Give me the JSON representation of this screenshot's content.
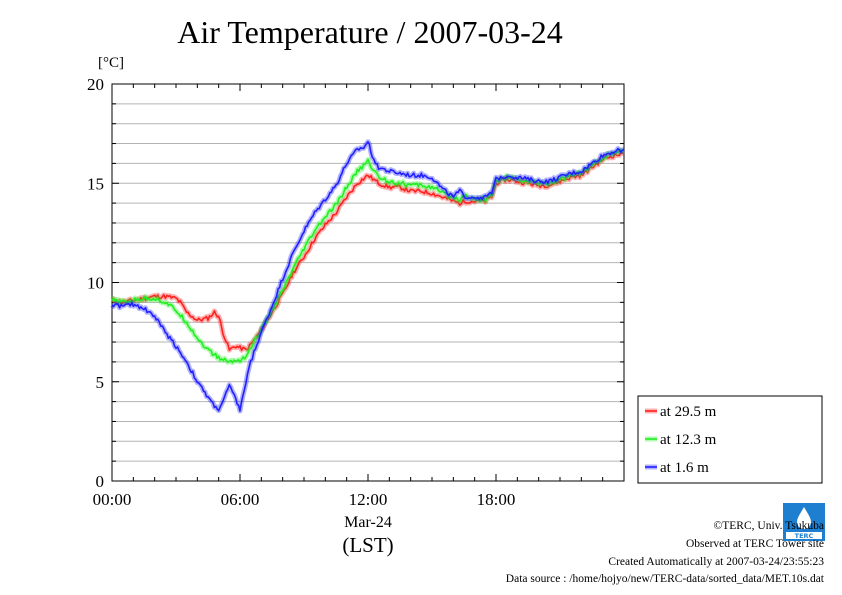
{
  "chart_data": {
    "type": "line",
    "title": "Air Temperature / 2007-03-24",
    "ylabel": "[°C]",
    "xlabel_date": "Mar-24",
    "xlabel_tz": "(LST)",
    "ylim": [
      0,
      20
    ],
    "xlim": [
      0,
      24
    ],
    "x_unit": "hours (LST)",
    "yticks": [
      "0",
      "5",
      "10",
      "15",
      "20"
    ],
    "xticks": [
      {
        "value": 0,
        "label": "00:00"
      },
      {
        "value": 6,
        "label": "06:00"
      },
      {
        "value": 12,
        "label": "12:00"
      },
      {
        "value": 18,
        "label": "18:00"
      }
    ],
    "grid": "horizontal",
    "legend_position": "right",
    "series": [
      {
        "name": "at 29.5 m",
        "color": "#ff2020",
        "x": [
          0,
          0.5,
          1,
          1.5,
          2,
          2.5,
          3,
          3.2,
          3.5,
          4,
          4.5,
          4.8,
          5,
          5.2,
          5.5,
          5.8,
          6,
          6.3,
          6.6,
          7,
          7.5,
          8,
          8.5,
          9,
          9.5,
          10,
          10.5,
          11,
          11.5,
          12,
          12.5,
          13,
          13.5,
          14,
          14.5,
          15,
          15.5,
          16,
          16.3,
          16.6,
          17,
          17.5,
          17.8,
          18,
          18.5,
          19,
          19.5,
          20,
          20.5,
          21,
          21.5,
          22,
          22.5,
          23,
          23.5,
          24
        ],
        "y": [
          9.1,
          9.0,
          9.1,
          9.2,
          9.3,
          9.3,
          9.2,
          9.0,
          8.5,
          8.1,
          8.2,
          8.5,
          8.3,
          7.5,
          6.6,
          6.8,
          6.7,
          6.6,
          7.0,
          7.6,
          8.5,
          9.4,
          10.5,
          11.3,
          12.2,
          12.9,
          13.5,
          14.3,
          15.0,
          15.4,
          15.0,
          14.8,
          14.8,
          14.6,
          14.6,
          14.5,
          14.3,
          14.1,
          14.0,
          14.1,
          14.1,
          14.1,
          14.3,
          15.0,
          15.2,
          15.1,
          15.0,
          14.9,
          14.9,
          15.1,
          15.3,
          15.4,
          15.8,
          16.2,
          16.4,
          16.5
        ]
      },
      {
        "name": "at 12.3 m",
        "color": "#20f020",
        "x": [
          0,
          0.5,
          1,
          1.5,
          2,
          2.5,
          3,
          3.5,
          4,
          4.5,
          5,
          5.5,
          6,
          6.3,
          6.6,
          7,
          7.5,
          8,
          8.5,
          9,
          9.5,
          10,
          10.5,
          11,
          11.5,
          12,
          12.5,
          13,
          13.5,
          14,
          14.5,
          15,
          15.5,
          16,
          16.3,
          16.6,
          17,
          17.5,
          17.8,
          18,
          18.5,
          19,
          19.5,
          20,
          20.5,
          21,
          21.5,
          22,
          22.5,
          23,
          23.5,
          24
        ],
        "y": [
          9.1,
          9.0,
          9.1,
          9.2,
          9.2,
          9.0,
          8.6,
          8.0,
          7.2,
          6.6,
          6.2,
          6.0,
          6.1,
          6.3,
          6.9,
          7.6,
          8.6,
          9.6,
          10.7,
          11.7,
          12.6,
          13.3,
          13.9,
          14.8,
          15.6,
          16.1,
          15.3,
          15.1,
          15.0,
          14.9,
          14.9,
          14.8,
          14.5,
          14.3,
          14.2,
          14.4,
          14.2,
          14.2,
          14.4,
          15.1,
          15.3,
          15.2,
          15.1,
          15.0,
          15.0,
          15.2,
          15.4,
          15.5,
          15.9,
          16.3,
          16.5,
          16.6
        ]
      },
      {
        "name": "at 1.6 m",
        "color": "#2020ff",
        "x": [
          0,
          0.5,
          1,
          1.5,
          2,
          2.5,
          3,
          3.5,
          4,
          4.5,
          4.8,
          5,
          5.2,
          5.5,
          5.8,
          6,
          6.2,
          6.5,
          6.8,
          7,
          7.5,
          8,
          8.5,
          9,
          9.5,
          10,
          10.5,
          11,
          11.5,
          11.8,
          12,
          12.2,
          12.5,
          13,
          13.5,
          14,
          14.5,
          15,
          15.5,
          16,
          16.3,
          16.6,
          17,
          17.5,
          17.8,
          18,
          18.5,
          19,
          19.5,
          20,
          20.5,
          21,
          21.5,
          22,
          22.5,
          23,
          23.5,
          24
        ],
        "y": [
          8.9,
          8.8,
          8.9,
          8.7,
          8.3,
          7.5,
          6.8,
          6.0,
          5.0,
          4.2,
          3.8,
          3.6,
          4.0,
          4.8,
          4.1,
          3.6,
          4.6,
          6.0,
          6.9,
          7.5,
          8.8,
          10.2,
          11.5,
          12.6,
          13.5,
          14.2,
          14.9,
          16.0,
          16.7,
          16.8,
          17.1,
          16.4,
          15.8,
          15.6,
          15.5,
          15.4,
          15.4,
          15.3,
          14.7,
          14.3,
          14.6,
          14.3,
          14.3,
          14.3,
          14.5,
          15.2,
          15.4,
          15.3,
          15.2,
          15.1,
          15.1,
          15.3,
          15.5,
          15.6,
          16.0,
          16.4,
          16.6,
          16.7
        ]
      }
    ]
  },
  "footer": {
    "copyright": "©TERC, Univ. Tsukuba",
    "observed": "Observed at TERC Tower site",
    "created": "Created Automatically at 2007-03-24/23:55:23",
    "source": "Data source : /home/hojyo/new/TERC-data/sorted_data/MET.10s.dat",
    "logo_text": "TERC"
  }
}
